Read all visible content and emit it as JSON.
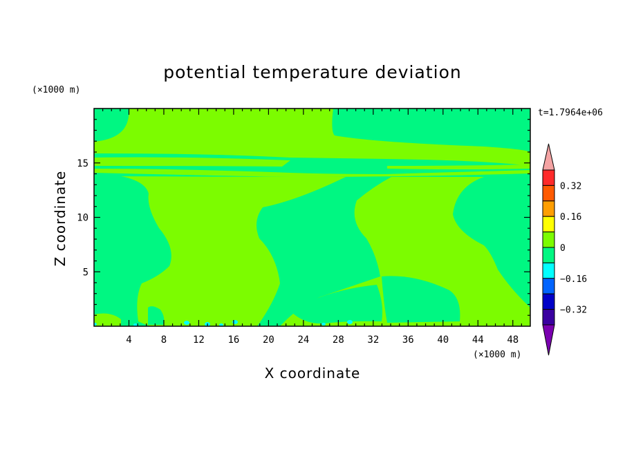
{
  "chart_data": {
    "type": "heatmap",
    "title": "potential temperature deviation",
    "xlabel": "X coordinate",
    "ylabel": "Z coordinate",
    "x_unit": "(×1000 m)",
    "y_unit": "(×1000 m)",
    "time_label": "t=1.7964e+06",
    "xlim": [
      0,
      50
    ],
    "ylim": [
      0,
      20
    ],
    "x_ticks": [
      4,
      8,
      12,
      16,
      20,
      24,
      28,
      32,
      36,
      40,
      44,
      48
    ],
    "y_ticks": [
      5,
      10,
      15
    ],
    "colorbar": {
      "labels": [
        "0.32",
        "0.16",
        "0",
        "-0.16",
        "-0.32"
      ],
      "levels": [
        {
          "min": 0.4,
          "color": "#f4a3a3"
        },
        {
          "min": 0.32,
          "max": 0.4,
          "color": "#ff2a2a"
        },
        {
          "min": 0.24,
          "max": 0.32,
          "color": "#ff5a00"
        },
        {
          "min": 0.16,
          "max": 0.24,
          "color": "#ff9e00"
        },
        {
          "min": 0.08,
          "max": 0.16,
          "color": "#ffff00"
        },
        {
          "min": 0,
          "max": 0.08,
          "color": "#7cfc00"
        },
        {
          "min": -0.08,
          "max": 0,
          "color": "#00f782"
        },
        {
          "min": -0.16,
          "max": -0.08,
          "color": "#00ffff"
        },
        {
          "min": -0.24,
          "max": -0.16,
          "color": "#0064ff"
        },
        {
          "min": -0.32,
          "max": -0.24,
          "color": "#0000c8"
        },
        {
          "min": -0.4,
          "max": -0.32,
          "color": "#3a00a0"
        },
        {
          "max": -0.4,
          "color": "#7a00b0"
        }
      ]
    },
    "background_level_color": "#00f782",
    "positive_region_color": "#7cfc00",
    "negative_spot_color": "#00ffff"
  }
}
